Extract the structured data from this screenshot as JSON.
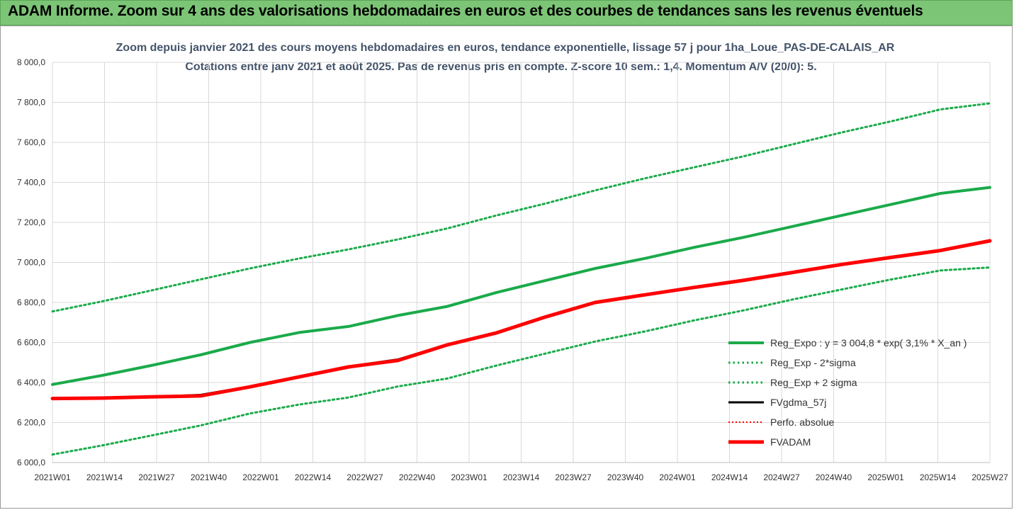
{
  "header": {
    "banner": "ADAM Informe. Zoom sur 4 ans des valorisations hebdomadaires en euros et des courbes de tendances sans les revenus éventuels"
  },
  "chart_data": {
    "type": "line",
    "title": "Zoom depuis janvier 2021 des cours moyens hebdomadaires en euros, tendance exponentielle, lissage 57 j pour 1ha_Loue_PAS-DE-CALAIS_AR",
    "subtitle": "Cotations entre janv 2021 et août 2025.  Pas de revenus pris en compte. Z-score 10 sem.: 1,4. Momentum A/V (20/0): 5.",
    "xlabel": "",
    "ylabel": "",
    "ylim": [
      6000,
      8000
    ],
    "y_ticks": [
      "8 000,0",
      "7 800,0",
      "7 600,0",
      "7 400,0",
      "7 200,0",
      "7 000,0",
      "6 800,0",
      "6 600,0",
      "6 400,0",
      "6 200,0",
      "6 000,0"
    ],
    "x_ticks": [
      "2021W01",
      "2021W14",
      "2021W27",
      "2021W40",
      "2022W01",
      "2022W14",
      "2022W27",
      "2022W40",
      "2023W01",
      "2023W14",
      "2023W27",
      "2023W40",
      "2024W01",
      "2024W14",
      "2024W27",
      "2024W40",
      "2025W01",
      "2025W14",
      "2025W27"
    ],
    "grid": true,
    "legend_position": "bottom-right",
    "series": [
      {
        "name": "Reg_Expo : y = 3 004,8 * exp( 3,1% *  X_an )",
        "color": "#1aaa4a",
        "style": "solid",
        "values": [
          6390,
          6435,
          6485,
          6538,
          6600,
          6650,
          6680,
          6735,
          6780,
          6850,
          6910,
          6970,
          7020,
          7075,
          7125,
          7180,
          7235,
          7290,
          7345,
          7375
        ]
      },
      {
        "name": "Reg_Exp - 2*sigma",
        "color": "#1aaa4a",
        "style": "dotted",
        "values": [
          6040,
          6085,
          6135,
          6185,
          6245,
          6290,
          6325,
          6380,
          6420,
          6485,
          6545,
          6605,
          6655,
          6710,
          6760,
          6815,
          6865,
          6915,
          6960,
          6975
        ]
      },
      {
        "name": "Reg_Exp + 2 sigma",
        "color": "#1aaa4a",
        "style": "dotted",
        "values": [
          6755,
          6805,
          6860,
          6915,
          6970,
          7020,
          7065,
          7115,
          7170,
          7235,
          7295,
          7360,
          7420,
          7475,
          7530,
          7590,
          7650,
          7705,
          7765,
          7795
        ]
      },
      {
        "name": "FVgdma_57j",
        "color": "#000000",
        "style": "solid",
        "values": [
          6320,
          6322,
          6328,
          6338,
          6380,
          6430,
          6480,
          6515,
          6590,
          6650,
          6730,
          6800,
          6838,
          6875,
          6910,
          6950,
          6990,
          7025,
          7060,
          7105
        ]
      },
      {
        "name": "Perfo. absolue",
        "color": "#ff0000",
        "style": "dotted",
        "values": [
          6320,
          6322,
          6328,
          6333,
          6378,
          6428,
          6478,
          6510,
          6588,
          6648,
          6728,
          6800,
          6838,
          6875,
          6910,
          6950,
          6990,
          7025,
          7060,
          7108
        ]
      },
      {
        "name": "FVADAM",
        "color": "#ff0000",
        "style": "thick",
        "values": [
          6320,
          6322,
          6328,
          6333,
          6378,
          6428,
          6478,
          6510,
          6588,
          6648,
          6728,
          6800,
          6838,
          6875,
          6910,
          6950,
          6990,
          7025,
          7060,
          7108
        ]
      }
    ]
  }
}
